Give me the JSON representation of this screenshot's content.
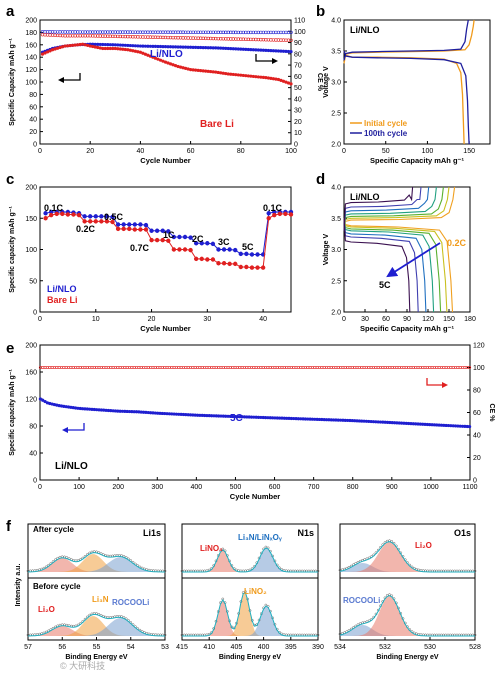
{
  "chart_data": [
    {
      "type": "scatter",
      "panel_letter": "a",
      "xlabel": "Cycle Number",
      "ylabel": "Specific Capacity mAh g⁻¹",
      "y2label": "CE %",
      "xlim": [
        0,
        100
      ],
      "ylim": [
        0,
        200
      ],
      "y2lim": [
        0,
        110
      ],
      "xticks": [
        0,
        20,
        40,
        60,
        80,
        100
      ],
      "yticks": [
        0,
        20,
        40,
        60,
        80,
        100,
        120,
        140,
        160,
        180,
        200
      ],
      "y2ticks": [
        0,
        10,
        20,
        30,
        40,
        50,
        60,
        70,
        80,
        90,
        100,
        110
      ],
      "annotations": [
        "Li/NLO",
        "Bare Li"
      ],
      "series": [
        {
          "name": "Li/NLO",
          "color": "#1f1fd0",
          "axis": "y",
          "kind": "dots",
          "x": [
            1,
            5,
            10,
            15,
            20,
            30,
            40,
            50,
            60,
            70,
            80,
            90,
            100
          ],
          "y": [
            148,
            154,
            158,
            160,
            161,
            160,
            158,
            157,
            156,
            155,
            153,
            151,
            149
          ]
        },
        {
          "name": "Bare Li",
          "color": "#e02020",
          "axis": "y",
          "kind": "dots",
          "x": [
            1,
            5,
            10,
            15,
            17,
            20,
            25,
            30,
            35,
            40,
            45,
            50,
            55,
            60,
            65,
            70,
            75,
            80,
            85,
            90,
            95,
            100
          ],
          "y": [
            145,
            152,
            158,
            160,
            161,
            158,
            154,
            154,
            152,
            148,
            140,
            132,
            125,
            120,
            118,
            116,
            113,
            111,
            109,
            107,
            104,
            97
          ]
        },
        {
          "name": "Li/NLO CE",
          "color": "#1f1fd0",
          "axis": "y2",
          "kind": "circles",
          "x": [
            1,
            10,
            20,
            30,
            40,
            50,
            60,
            70,
            80,
            90,
            100
          ],
          "y": [
            99.5,
            99.4,
            99.3,
            99.3,
            99.2,
            99.2,
            99.1,
            99.1,
            99.0,
            99.0,
            99.0
          ]
        },
        {
          "name": "Bare Li CE",
          "color": "#e02020",
          "axis": "y2",
          "kind": "circles",
          "x": [
            1,
            10,
            20,
            30,
            40,
            50,
            60,
            70,
            80,
            90,
            100
          ],
          "y": [
            97,
            96,
            96,
            95.5,
            95,
            94.5,
            94,
            93.5,
            93,
            92.5,
            92
          ]
        }
      ]
    },
    {
      "type": "line",
      "panel_letter": "b",
      "xlabel": "Specific Capacity mAh g⁻¹",
      "ylabel": "Voltage V",
      "xlim": [
        0,
        175
      ],
      "ylim": [
        2.0,
        4.0
      ],
      "xticks": [
        0,
        50,
        100,
        150
      ],
      "yticks": [
        2.0,
        2.5,
        3.0,
        3.5,
        4.0
      ],
      "annotations": [
        "Li/NLO"
      ],
      "legend": [
        "Initial cycle",
        "100th cycle"
      ],
      "series": [
        {
          "name": "Initial cycle charge",
          "color": "#f09a1a",
          "x": [
            0,
            2,
            10,
            40,
            80,
            120,
            145,
            150,
            153,
            155,
            156
          ],
          "y": [
            3.3,
            3.45,
            3.47,
            3.48,
            3.49,
            3.5,
            3.52,
            3.6,
            3.75,
            3.9,
            4.0
          ]
        },
        {
          "name": "Initial cycle discharge",
          "color": "#f09a1a",
          "x": [
            0,
            2,
            10,
            40,
            80,
            120,
            135,
            140,
            142,
            143,
            144
          ],
          "y": [
            3.5,
            3.43,
            3.4,
            3.4,
            3.39,
            3.37,
            3.3,
            3.15,
            2.8,
            2.4,
            2.0
          ]
        },
        {
          "name": "100th cycle charge",
          "color": "#1f1f9e",
          "x": [
            0,
            2,
            10,
            40,
            80,
            120,
            140,
            145,
            147,
            149
          ],
          "y": [
            3.35,
            3.46,
            3.48,
            3.49,
            3.5,
            3.51,
            3.53,
            3.65,
            3.85,
            4.0
          ]
        },
        {
          "name": "100th cycle discharge",
          "color": "#1f1f9e",
          "x": [
            0,
            2,
            10,
            40,
            80,
            120,
            140,
            146,
            148,
            149,
            150
          ],
          "y": [
            3.5,
            3.42,
            3.4,
            3.39,
            3.38,
            3.36,
            3.3,
            3.1,
            2.7,
            2.3,
            2.0
          ]
        }
      ]
    },
    {
      "type": "scatter",
      "panel_letter": "c",
      "xlabel": "Cycle Number",
      "ylabel": "Specific capacity mAh g⁻¹",
      "xlim": [
        0,
        45
      ],
      "ylim": [
        0,
        200
      ],
      "xticks": [
        0,
        10,
        20,
        30,
        40
      ],
      "yticks": [
        0,
        50,
        100,
        150,
        200
      ],
      "rate_labels": [
        "0.1C",
        "0.2C",
        "0.5C",
        "0.7C",
        "1C",
        "2C",
        "3C",
        "5C",
        "0.1C"
      ],
      "legend": [
        "Li/NLO",
        "Bare Li"
      ],
      "series": [
        {
          "name": "Li/NLO",
          "color": "#1f1fd0",
          "x": [
            1,
            2,
            3,
            4,
            5,
            6,
            7,
            8,
            9,
            10,
            11,
            12,
            13,
            14,
            15,
            16,
            17,
            18,
            19,
            20,
            21,
            22,
            23,
            24,
            25,
            26,
            27,
            28,
            29,
            30,
            31,
            32,
            33,
            34,
            35,
            36,
            37,
            38,
            39,
            40,
            41,
            42,
            43,
            44,
            45
          ],
          "y": [
            158,
            160,
            160,
            160,
            160,
            159,
            158,
            153,
            153,
            153,
            153,
            153,
            152,
            140,
            140,
            140,
            140,
            140,
            139,
            130,
            130,
            130,
            129,
            120,
            120,
            120,
            119,
            110,
            110,
            110,
            109,
            100,
            100,
            100,
            99,
            93,
            93,
            92,
            92,
            92,
            158,
            160,
            160,
            160,
            160
          ]
        },
        {
          "name": "Bare Li",
          "color": "#e02020",
          "x": [
            1,
            2,
            3,
            4,
            5,
            6,
            7,
            8,
            9,
            10,
            11,
            12,
            13,
            14,
            15,
            16,
            17,
            18,
            19,
            20,
            21,
            22,
            23,
            24,
            25,
            26,
            27,
            28,
            29,
            30,
            31,
            32,
            33,
            34,
            35,
            36,
            37,
            38,
            39,
            40,
            41,
            42,
            43,
            44,
            45
          ],
          "y": [
            150,
            155,
            157,
            157,
            156,
            156,
            155,
            145,
            145,
            145,
            145,
            145,
            144,
            133,
            133,
            133,
            132,
            132,
            132,
            115,
            115,
            115,
            114,
            100,
            100,
            100,
            99,
            85,
            85,
            84,
            84,
            78,
            78,
            77,
            77,
            72,
            72,
            71,
            71,
            71,
            150,
            155,
            157,
            157,
            156
          ]
        }
      ]
    },
    {
      "type": "line",
      "panel_letter": "d",
      "xlabel": "Specific Capacity mAh g⁻¹",
      "ylabel": "Voltage V",
      "xlim": [
        0,
        180
      ],
      "ylim": [
        2.0,
        4.0
      ],
      "xticks": [
        0,
        30,
        60,
        90,
        120,
        150,
        180
      ],
      "yticks": [
        2.0,
        2.5,
        3.0,
        3.5,
        4.0
      ],
      "annotations": [
        "Li/NLO",
        "0.2C",
        "5C"
      ],
      "series": [
        {
          "name": "0.2C",
          "color": "#f0a020",
          "charge_end": 158,
          "discharge_end": 155,
          "charge_v": 3.47,
          "discharge_v": 3.38
        },
        {
          "name": "0.5C",
          "color": "#c9c020",
          "charge_end": 150,
          "discharge_end": 147,
          "charge_v": 3.5,
          "discharge_v": 3.36
        },
        {
          "name": "0.7C",
          "color": "#5ab030",
          "charge_end": 142,
          "discharge_end": 138,
          "charge_v": 3.53,
          "discharge_v": 3.33
        },
        {
          "name": "1C",
          "color": "#20a080",
          "charge_end": 132,
          "discharge_end": 128,
          "charge_v": 3.57,
          "discharge_v": 3.3
        },
        {
          "name": "2C",
          "color": "#2070c0",
          "charge_end": 121,
          "discharge_end": 117,
          "charge_v": 3.62,
          "discharge_v": 3.25
        },
        {
          "name": "3C",
          "color": "#4040b0",
          "charge_end": 110,
          "discharge_end": 106,
          "charge_v": 3.68,
          "discharge_v": 3.2
        },
        {
          "name": "5C",
          "color": "#3a1050",
          "charge_end": 98,
          "discharge_end": 94,
          "charge_v": 3.75,
          "discharge_v": 3.12
        }
      ]
    },
    {
      "type": "scatter",
      "panel_letter": "e",
      "xlabel": "Cycle Number",
      "ylabel": "Specific capacity mAh g⁻¹",
      "y2label": "CE %",
      "xlim": [
        0,
        1100
      ],
      "ylim": [
        0,
        200
      ],
      "y2lim": [
        0,
        120
      ],
      "xticks": [
        0,
        100,
        200,
        300,
        400,
        500,
        600,
        700,
        800,
        900,
        1000,
        1100
      ],
      "yticks": [
        0,
        40,
        80,
        120,
        160,
        200
      ],
      "y2ticks": [
        0,
        20,
        40,
        60,
        80,
        100,
        120
      ],
      "annotations": [
        "5C",
        "Li/NLO"
      ],
      "series": [
        {
          "name": "Capacity",
          "color": "#1f1fd0",
          "axis": "y",
          "x": [
            1,
            20,
            50,
            100,
            150,
            200,
            250,
            300,
            400,
            500,
            600,
            700,
            800,
            900,
            1000,
            1100
          ],
          "y": [
            120,
            114,
            110,
            106,
            104,
            102,
            101,
            99,
            96,
            94,
            92,
            90,
            88,
            85,
            82,
            79
          ]
        },
        {
          "name": "CE",
          "color": "#e02020",
          "axis": "y2",
          "x": [
            1,
            100,
            200,
            300,
            400,
            500,
            600,
            700,
            800,
            900,
            1000,
            1100
          ],
          "y": [
            100,
            100,
            100,
            100,
            100,
            100,
            100,
            100,
            100,
            100,
            100,
            100
          ]
        }
      ]
    },
    {
      "type": "line",
      "panel_letter": "f",
      "subplots": [
        {
          "title": "Li1s",
          "xlim": [
            57,
            53
          ],
          "xticks": [
            57,
            56,
            55,
            54,
            53
          ],
          "labels_top": [
            "After cycle"
          ],
          "labels_bottom": [
            "Before cycle",
            "Li₂O",
            "Li₃N",
            "ROCOOLi"
          ]
        },
        {
          "title": "N1s",
          "xlim": [
            415,
            390
          ],
          "xticks": [
            415,
            410,
            405,
            400,
            395,
            390
          ],
          "labels_top": [
            "LiNO₃",
            "Li₃N/LiNₓOᵧ"
          ],
          "labels_bottom": [
            "LiNO₂"
          ]
        },
        {
          "title": "O1s",
          "xlim": [
            534,
            528
          ],
          "xticks": [
            534,
            532,
            530,
            528
          ],
          "labels_top": [
            "Li₂O"
          ],
          "labels_bottom": [
            "ROCOOLi"
          ]
        }
      ],
      "xlabel": "Binding Energy eV",
      "ylabel": "Intensity a.u."
    }
  ],
  "watermark": "© 大研科技"
}
